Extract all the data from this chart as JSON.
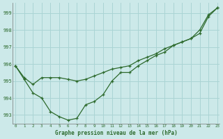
{
  "title": "Graphe pression niveau de la mer (hPa)",
  "background_color": "#cce9e9",
  "grid_color": "#aad4d4",
  "line_color": "#2d6a2d",
  "xlim": [
    -0.3,
    23.3
  ],
  "ylim": [
    992.5,
    999.6
  ],
  "yticks": [
    993,
    994,
    995,
    996,
    997,
    998,
    999
  ],
  "xticks": [
    0,
    1,
    2,
    3,
    4,
    5,
    6,
    7,
    8,
    9,
    10,
    11,
    12,
    13,
    14,
    15,
    16,
    17,
    18,
    19,
    20,
    21,
    22,
    23
  ],
  "series1_x": [
    0,
    1,
    2,
    3,
    4,
    5,
    6,
    7,
    8,
    9,
    10,
    11,
    12,
    13,
    14,
    15,
    16,
    17,
    18,
    19,
    20,
    21,
    22,
    23
  ],
  "series1_y": [
    995.9,
    995.2,
    994.8,
    995.2,
    995.2,
    995.2,
    995.1,
    995.0,
    995.1,
    995.3,
    995.5,
    995.7,
    995.8,
    995.9,
    996.2,
    996.4,
    996.6,
    996.9,
    997.1,
    997.3,
    997.5,
    997.8,
    998.8,
    999.3
  ],
  "series2_x": [
    0,
    1,
    2,
    3,
    4,
    5,
    6,
    7,
    8,
    9,
    10,
    11,
    12,
    13,
    14,
    15,
    16,
    17,
    18,
    19,
    20,
    21,
    22,
    23
  ],
  "series2_y": [
    995.9,
    995.1,
    994.3,
    994.0,
    993.2,
    992.9,
    992.7,
    992.8,
    993.6,
    993.8,
    994.2,
    995.0,
    995.5,
    995.5,
    995.9,
    996.2,
    996.5,
    996.7,
    997.1,
    997.3,
    997.5,
    998.0,
    998.9,
    999.3
  ]
}
